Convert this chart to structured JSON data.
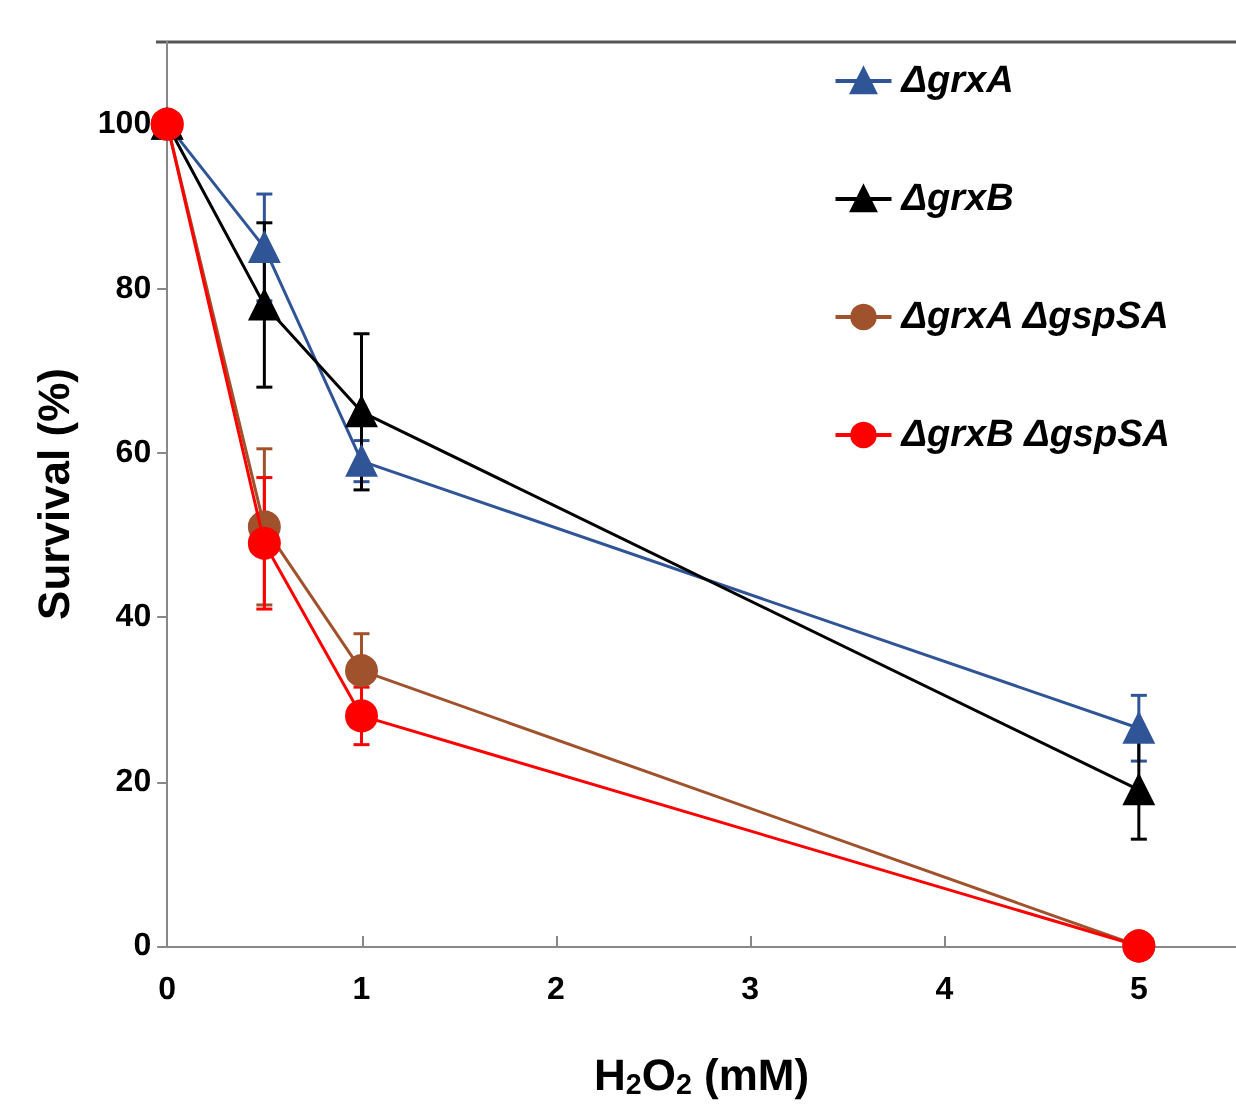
{
  "chart_data": {
    "type": "line",
    "xlabel": "H$_{2}$O$_{2}$ (mM)",
    "ylabel": "Survival (%)",
    "x": [
      0,
      0.5,
      1,
      5
    ],
    "xlim": [
      0,
      5.5
    ],
    "xticks": [
      0,
      1,
      2,
      3,
      4,
      5
    ],
    "ylim": [
      0,
      110
    ],
    "yticks": [
      0,
      20,
      40,
      60,
      80,
      100
    ],
    "grid": false,
    "legend": "top right",
    "line_style": "solid",
    "series": [
      {
        "name": "ΔgrxA",
        "color": "#2f5597",
        "marker": "triangle",
        "values": [
          100,
          85,
          59,
          26.5
        ],
        "errors": [
          null,
          6.5,
          2.5,
          4
        ]
      },
      {
        "name": "ΔgrxB",
        "color": "#000000",
        "marker": "triangle",
        "values": [
          100,
          78,
          65,
          19
        ],
        "errors": [
          null,
          10,
          9.5,
          6
        ]
      },
      {
        "name": "ΔgrxA ΔgspSA",
        "color": "#a0522d",
        "marker": "circle",
        "values": [
          100,
          51,
          33.5,
          0
        ],
        "errors": [
          null,
          9.5,
          4.5,
          null
        ]
      },
      {
        "name": "ΔgrxB ΔgspSA",
        "color": "#ff0000",
        "marker": "circle",
        "values": [
          100,
          49,
          28,
          0
        ],
        "errors": [
          null,
          8,
          3.5,
          null
        ]
      }
    ]
  }
}
